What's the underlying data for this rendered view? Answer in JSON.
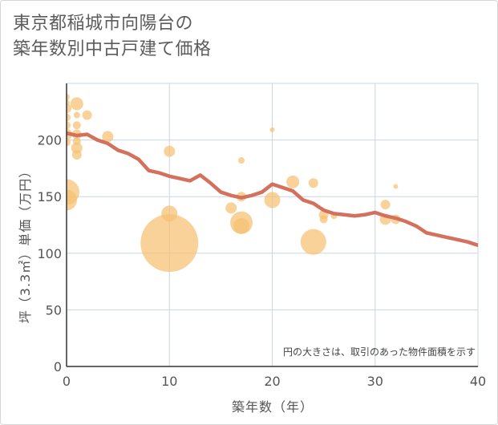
{
  "title_lines": [
    "東京都稲城市向陽台の",
    "築年数別中古戸建て価格"
  ],
  "chart_data": {
    "type": "scatter",
    "title": "東京都稲城市向陽台の築年数別中古戸建て価格",
    "xlabel": "築年数（年）",
    "ylabel": "坪（3.3㎡）単価（万円）",
    "xlim": [
      0,
      40
    ],
    "ylim": [
      0,
      250
    ],
    "x_ticks": [
      0,
      10,
      20,
      30,
      40
    ],
    "y_ticks": [
      0,
      50,
      100,
      150,
      200
    ],
    "grid": true,
    "note": "円の大きさは、取引のあった物件面積を示す",
    "colors": {
      "bubble": "#f5c072",
      "line": "#d4715c",
      "grid": "#c9d6e3",
      "axis": "#333333"
    },
    "trend_line": {
      "x": [
        0,
        1,
        2,
        3,
        4,
        5,
        6,
        7,
        8,
        9,
        10,
        11,
        12,
        13,
        14,
        15,
        16,
        17,
        18,
        19,
        20,
        21,
        22,
        23,
        24,
        25,
        26,
        27,
        28,
        29,
        30,
        31,
        32,
        33,
        34,
        35,
        36,
        37,
        38,
        39,
        40
      ],
      "y": [
        206,
        204,
        205,
        200,
        197,
        191,
        188,
        183,
        173,
        171,
        168,
        166,
        164,
        169,
        162,
        154,
        151,
        149,
        151,
        154,
        161,
        158,
        155,
        147,
        144,
        138,
        135,
        134,
        133,
        134,
        136,
        133,
        131,
        128,
        124,
        118,
        116,
        114,
        112,
        110,
        107
      ]
    },
    "bubbles": [
      {
        "x": 0,
        "y": 238,
        "size": 4
      },
      {
        "x": 0,
        "y": 233,
        "size": 4
      },
      {
        "x": 0,
        "y": 228,
        "size": 6
      },
      {
        "x": 0,
        "y": 220,
        "size": 5
      },
      {
        "x": 0,
        "y": 213,
        "size": 5
      },
      {
        "x": 0,
        "y": 205,
        "size": 7
      },
      {
        "x": 0,
        "y": 198,
        "size": 5
      },
      {
        "x": 0,
        "y": 154,
        "size": 16
      },
      {
        "x": 0,
        "y": 147,
        "size": 13
      },
      {
        "x": 1,
        "y": 232,
        "size": 8
      },
      {
        "x": 1,
        "y": 222,
        "size": 4
      },
      {
        "x": 1,
        "y": 213,
        "size": 5
      },
      {
        "x": 1,
        "y": 205,
        "size": 6
      },
      {
        "x": 1,
        "y": 199,
        "size": 5
      },
      {
        "x": 1,
        "y": 193,
        "size": 7
      },
      {
        "x": 1,
        "y": 187,
        "size": 6
      },
      {
        "x": 2,
        "y": 222,
        "size": 6
      },
      {
        "x": 4,
        "y": 203,
        "size": 7
      },
      {
        "x": 10,
        "y": 190,
        "size": 7
      },
      {
        "x": 10,
        "y": 135,
        "size": 10
      },
      {
        "x": 10,
        "y": 109,
        "size": 36
      },
      {
        "x": 16,
        "y": 140,
        "size": 7
      },
      {
        "x": 17,
        "y": 182,
        "size": 4
      },
      {
        "x": 17,
        "y": 150,
        "size": 6
      },
      {
        "x": 17,
        "y": 127,
        "size": 14
      },
      {
        "x": 17,
        "y": 124,
        "size": 10
      },
      {
        "x": 20,
        "y": 209,
        "size": 3
      },
      {
        "x": 20,
        "y": 147,
        "size": 10
      },
      {
        "x": 22,
        "y": 163,
        "size": 8
      },
      {
        "x": 24,
        "y": 162,
        "size": 6
      },
      {
        "x": 24,
        "y": 110,
        "size": 16
      },
      {
        "x": 25,
        "y": 134,
        "size": 6
      },
      {
        "x": 25,
        "y": 130,
        "size": 5
      },
      {
        "x": 26,
        "y": 133,
        "size": 4
      },
      {
        "x": 31,
        "y": 143,
        "size": 6
      },
      {
        "x": 31,
        "y": 130,
        "size": 7
      },
      {
        "x": 32,
        "y": 159,
        "size": 3
      },
      {
        "x": 32,
        "y": 130,
        "size": 6
      }
    ]
  }
}
